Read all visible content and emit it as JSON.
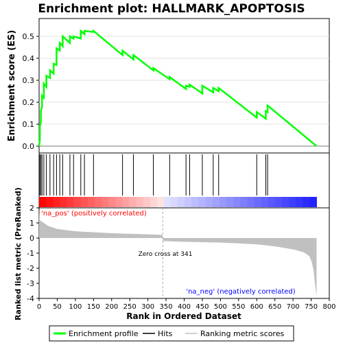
{
  "chart_data": {
    "type": "line",
    "title": "Enrichment plot: HALLMARK_APOPTOSIS",
    "xlabel": "Rank in Ordered Dataset",
    "xlim": [
      0,
      800
    ],
    "x_ticks": [
      0,
      50,
      100,
      150,
      200,
      250,
      300,
      350,
      400,
      450,
      500,
      550,
      600,
      650,
      700,
      750,
      800
    ],
    "top_panel": {
      "ylabel": "Enrichment score (ES)",
      "ylim": [
        0,
        0.55
      ],
      "y_ticks": [
        "0.0",
        "0.1",
        "0.2",
        "0.3",
        "0.4",
        "0.5"
      ],
      "series": [
        {
          "name": "Enrichment profile",
          "color": "#00ff00",
          "x": [
            0,
            2,
            2,
            5,
            5,
            8,
            8,
            13,
            13,
            20,
            20,
            30,
            30,
            40,
            40,
            48,
            48,
            57,
            57,
            65,
            65,
            85,
            85,
            95,
            95,
            115,
            115,
            125,
            125,
            150,
            150,
            230,
            230,
            260,
            260,
            315,
            315,
            360,
            360,
            405,
            405,
            415,
            415,
            450,
            450,
            480,
            480,
            495,
            495,
            600,
            600,
            625,
            625,
            630,
            630,
            765
          ],
          "y": [
            0.0,
            0.03,
            0.09,
            0.11,
            0.16,
            0.18,
            0.23,
            0.22,
            0.285,
            0.27,
            0.32,
            0.31,
            0.345,
            0.33,
            0.375,
            0.37,
            0.445,
            0.435,
            0.47,
            0.455,
            0.5,
            0.47,
            0.5,
            0.49,
            0.5,
            0.49,
            0.525,
            0.51,
            0.525,
            0.52,
            0.525,
            0.415,
            0.435,
            0.395,
            0.415,
            0.345,
            0.355,
            0.305,
            0.315,
            0.26,
            0.275,
            0.27,
            0.28,
            0.24,
            0.275,
            0.245,
            0.265,
            0.25,
            0.265,
            0.13,
            0.155,
            0.125,
            0.16,
            0.155,
            0.185,
            0.0
          ]
        }
      ]
    },
    "hits_panel": {
      "series_name": "Hits",
      "hit_positions": [
        2,
        5,
        8,
        13,
        20,
        30,
        40,
        48,
        57,
        65,
        85,
        95,
        115,
        125,
        150,
        230,
        260,
        315,
        360,
        405,
        415,
        450,
        480,
        495,
        600,
        625,
        630
      ]
    },
    "bottom_panel": {
      "ylabel": "Ranked list metric (PreRanked)",
      "ylim": [
        -4,
        2
      ],
      "y_ticks": [
        "2",
        "1",
        "0",
        "-1",
        "-2",
        "-3",
        "-4"
      ],
      "series_name": "Ranking metric scores",
      "n_ranks": 765,
      "zero_cross": 341,
      "zero_cross_label": "Zero cross at 341",
      "pos_label": "'na_pos' (positively correlated)",
      "neg_label": "'na_neg' (negatively correlated)",
      "pos_color": "#ff0000",
      "neg_color": "#0000ff",
      "metric_profile_x": [
        0,
        1,
        10,
        25,
        50,
        100,
        200,
        340,
        341,
        345,
        400,
        500,
        550,
        600,
        650,
        700,
        730,
        745,
        752,
        757,
        760,
        763,
        765
      ],
      "metric_profile_y": [
        1.9,
        1.2,
        1.05,
        0.8,
        0.6,
        0.45,
        0.32,
        0.22,
        -0.2,
        -0.2,
        -0.25,
        -0.3,
        -0.35,
        -0.42,
        -0.55,
        -0.75,
        -0.95,
        -1.2,
        -1.6,
        -2.2,
        -2.9,
        -3.5,
        -3.8
      ]
    },
    "legend": {
      "placement": "bottom",
      "items": [
        {
          "label": "Enrichment profile",
          "color": "#00ff00"
        },
        {
          "label": "Hits",
          "color": "#000000"
        },
        {
          "label": "Ranking metric scores",
          "color": "#c0c0c0"
        }
      ]
    }
  }
}
